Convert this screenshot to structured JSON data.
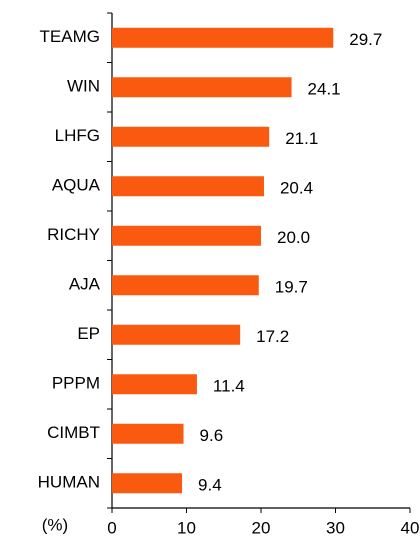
{
  "chart_data": {
    "type": "barh",
    "categories": [
      "TEAMG",
      "WIN",
      "LHFG",
      "AQUA",
      "RICHY",
      "AJA",
      "EP",
      "PPPM",
      "CIMBT",
      "HUMAN"
    ],
    "values": [
      29.7,
      24.1,
      21.1,
      20.4,
      20.0,
      19.7,
      17.2,
      11.4,
      9.6,
      9.4
    ],
    "value_labels": [
      "29.7",
      "24.1",
      "21.1",
      "20.4",
      "20.0",
      "19.7",
      "17.2",
      "11.4",
      "9.6",
      "9.4"
    ],
    "color": "#fa5a10",
    "xlabel": "(%)",
    "xlim": [
      0,
      40
    ],
    "xticks": [
      0,
      10,
      20,
      30,
      40
    ]
  }
}
